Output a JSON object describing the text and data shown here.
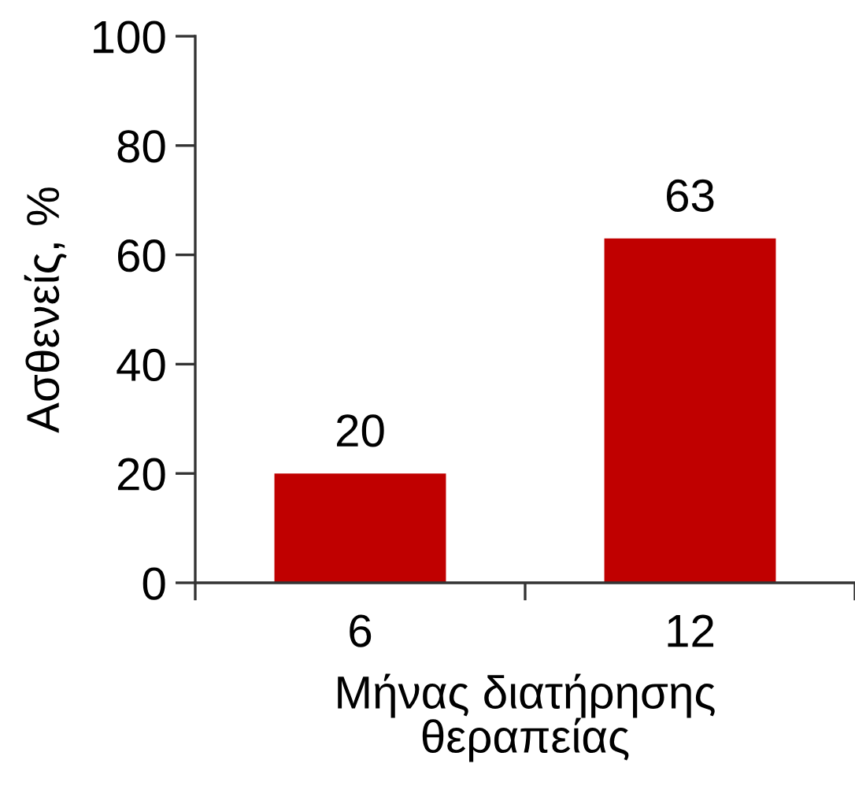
{
  "chart_data": {
    "type": "bar",
    "categories": [
      "6",
      "12"
    ],
    "values": [
      20,
      63
    ],
    "color": "#c00000",
    "xlabel": "Μήνας διατήρησης\nθεραπείας",
    "ylabel": "Ασθενείς, %",
    "ylim": [
      0,
      100
    ],
    "yticks": [
      0,
      20,
      40,
      60,
      80,
      100
    ],
    "data_labels": true,
    "grid": false,
    "legend": false
  }
}
